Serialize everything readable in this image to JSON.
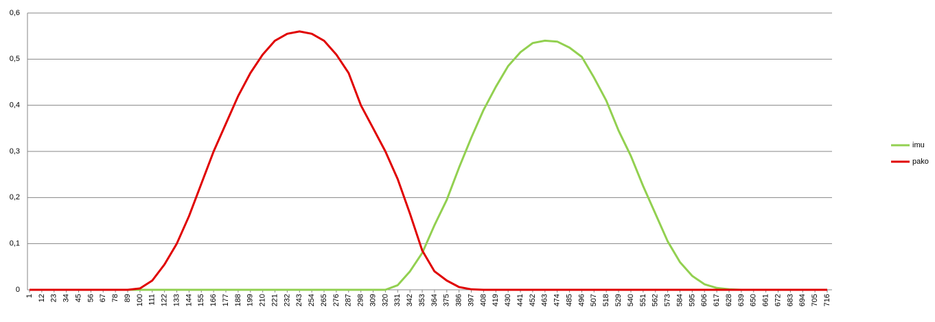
{
  "chart_data": {
    "type": "line",
    "x": [
      1,
      12,
      23,
      34,
      45,
      56,
      67,
      78,
      89,
      100,
      111,
      122,
      133,
      144,
      155,
      166,
      177,
      188,
      199,
      210,
      221,
      232,
      243,
      254,
      265,
      276,
      287,
      298,
      309,
      320,
      331,
      342,
      353,
      364,
      375,
      386,
      397,
      408,
      419,
      430,
      441,
      452,
      463,
      474,
      485,
      496,
      507,
      518,
      529,
      540,
      551,
      562,
      573,
      584,
      595,
      606,
      617,
      628,
      639,
      650,
      661,
      672,
      683,
      694,
      705,
      716
    ],
    "xlim": [
      1,
      720
    ],
    "xticks": [
      1,
      12,
      23,
      34,
      45,
      56,
      67,
      78,
      89,
      100,
      111,
      122,
      133,
      144,
      155,
      166,
      177,
      188,
      199,
      210,
      221,
      232,
      243,
      254,
      265,
      276,
      287,
      298,
      309,
      320,
      331,
      342,
      353,
      364,
      375,
      386,
      397,
      408,
      419,
      430,
      441,
      452,
      463,
      474,
      485,
      496,
      507,
      518,
      529,
      540,
      551,
      562,
      573,
      584,
      595,
      606,
      617,
      628,
      639,
      650,
      661,
      672,
      683,
      694,
      705,
      716
    ],
    "ylim": [
      0,
      0.6
    ],
    "yticks": [
      0,
      {
        "value": 0.1,
        "label": "0,1"
      },
      {
        "value": 0.2,
        "label": "0,2"
      },
      {
        "value": 0.3,
        "label": "0,3"
      },
      {
        "value": 0.4,
        "label": "0,4"
      },
      {
        "value": 0.5,
        "label": "0,5"
      },
      {
        "value": 0.6,
        "label": "0,6"
      }
    ],
    "grid": true,
    "legend": "right",
    "series": [
      {
        "name": "imu",
        "color": "#92d050",
        "values": [
          0,
          0,
          0,
          0,
          0,
          0,
          0,
          0,
          0,
          0,
          0,
          0,
          0,
          0,
          0,
          0,
          0,
          0,
          0,
          0,
          0,
          0,
          0,
          0,
          0,
          0,
          0,
          0,
          0,
          0,
          0.01,
          0.04,
          0.08,
          0.14,
          0.195,
          0.265,
          0.33,
          0.39,
          0.44,
          0.485,
          0.515,
          0.535,
          0.54,
          0.538,
          0.525,
          0.505,
          0.46,
          0.41,
          0.345,
          0.29,
          0.225,
          0.165,
          0.105,
          0.06,
          0.03,
          0.012,
          0.004,
          0.001,
          0,
          0,
          0,
          0,
          0,
          0,
          0,
          0
        ]
      },
      {
        "name": "pako",
        "color": "#e00000",
        "values": [
          0,
          0,
          0,
          0,
          0,
          0,
          0,
          0,
          0,
          0.003,
          0.02,
          0.055,
          0.1,
          0.16,
          0.23,
          0.3,
          0.36,
          0.42,
          0.47,
          0.51,
          0.54,
          0.555,
          0.56,
          0.555,
          0.54,
          0.51,
          0.47,
          0.4,
          0.35,
          0.3,
          0.24,
          0.165,
          0.085,
          0.04,
          0.02,
          0.006,
          0.001,
          0,
          0,
          0,
          0,
          0,
          0,
          0,
          0,
          0,
          0,
          0,
          0,
          0,
          0,
          0,
          0,
          0,
          0,
          0,
          0,
          0,
          0,
          0,
          0,
          0,
          0,
          0,
          0,
          0
        ]
      }
    ]
  }
}
